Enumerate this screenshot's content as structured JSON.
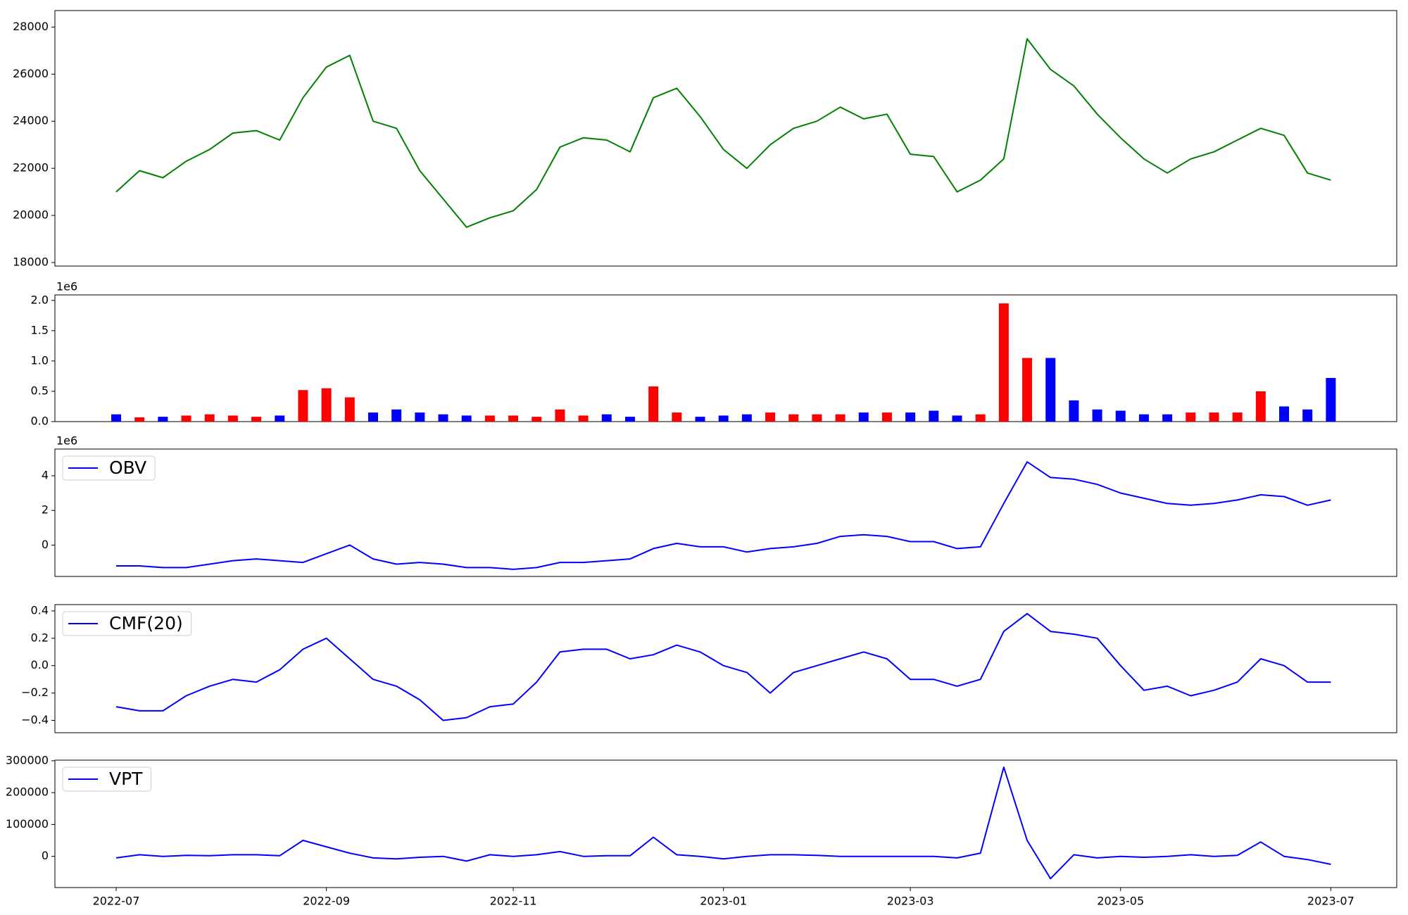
{
  "chart_data": [
    {
      "type": "line",
      "color": "#008000",
      "values": [
        21000,
        21900,
        21600,
        22300,
        22800,
        23500,
        23600,
        23200,
        25000,
        26300,
        26800,
        24000,
        23700,
        21900,
        20700,
        19500,
        19900,
        20200,
        21100,
        22900,
        23300,
        23200,
        22700,
        25000,
        25400,
        24200,
        22800,
        22000,
        23000,
        23700,
        24000,
        24600,
        24100,
        24300,
        22600,
        22500,
        21000,
        21500,
        22400,
        27500,
        26200,
        25500,
        24300,
        23300,
        22400,
        21800,
        22400,
        22700,
        23200,
        23700,
        23400,
        21800,
        21500
      ],
      "ylim": [
        17850,
        28700
      ],
      "yticks": [
        18000,
        20000,
        22000,
        24000,
        26000,
        28000
      ]
    },
    {
      "type": "bar",
      "y_offset_label": "1e6",
      "values": [
        120000,
        70000,
        80000,
        100000,
        120000,
        100000,
        80000,
        100000,
        520000,
        550000,
        400000,
        150000,
        200000,
        150000,
        120000,
        100000,
        100000,
        100000,
        80000,
        200000,
        100000,
        120000,
        80000,
        580000,
        150000,
        80000,
        100000,
        120000,
        150000,
        120000,
        120000,
        120000,
        150000,
        150000,
        150000,
        180000,
        100000,
        120000,
        1950000,
        1050000,
        1050000,
        350000,
        200000,
        180000,
        120000,
        120000,
        150000,
        150000,
        150000,
        500000,
        250000,
        200000,
        720000
      ],
      "colors": [
        "#0000ff",
        "#ff0000",
        "#0000ff",
        "#ff0000",
        "#ff0000",
        "#ff0000",
        "#ff0000",
        "#0000ff",
        "#ff0000",
        "#ff0000",
        "#ff0000",
        "#0000ff",
        "#0000ff",
        "#0000ff",
        "#0000ff",
        "#0000ff",
        "#ff0000",
        "#ff0000",
        "#ff0000",
        "#ff0000",
        "#ff0000",
        "#0000ff",
        "#0000ff",
        "#ff0000",
        "#ff0000",
        "#0000ff",
        "#0000ff",
        "#0000ff",
        "#ff0000",
        "#ff0000",
        "#ff0000",
        "#ff0000",
        "#0000ff",
        "#ff0000",
        "#0000ff",
        "#0000ff",
        "#0000ff",
        "#ff0000",
        "#ff0000",
        "#ff0000",
        "#0000ff",
        "#0000ff",
        "#0000ff",
        "#0000ff",
        "#0000ff",
        "#0000ff",
        "#ff0000",
        "#ff0000",
        "#ff0000",
        "#ff0000",
        "#0000ff",
        "#0000ff",
        "#0000ff"
      ],
      "ylim": [
        0,
        2090000
      ],
      "yticks": [
        {
          "value": 0,
          "label": "0.0"
        },
        {
          "value": 500000,
          "label": "0.5"
        },
        {
          "value": 1000000,
          "label": "1.0"
        },
        {
          "value": 1500000,
          "label": "1.5"
        },
        {
          "value": 2000000,
          "label": "2.0"
        }
      ]
    },
    {
      "type": "line",
      "y_offset_label": "1e6",
      "legend": "upper left",
      "series": [
        {
          "name": "OBV",
          "color": "#0000ff",
          "values": [
            -1200000,
            -1200000,
            -1300000,
            -1300000,
            -1100000,
            -900000,
            -800000,
            -900000,
            -1000000,
            -500000,
            0,
            -800000,
            -1100000,
            -1000000,
            -1100000,
            -1300000,
            -1300000,
            -1400000,
            -1300000,
            -1000000,
            -1000000,
            -900000,
            -800000,
            -200000,
            100000,
            -100000,
            -100000,
            -400000,
            -200000,
            -100000,
            100000,
            500000,
            600000,
            500000,
            200000,
            200000,
            -200000,
            -100000,
            2400000,
            4800000,
            3900000,
            3800000,
            3500000,
            3000000,
            2700000,
            2400000,
            2300000,
            2400000,
            2600000,
            2900000,
            2800000,
            2300000,
            2600000
          ]
        }
      ],
      "ylim": [
        -1810000,
        5540000
      ],
      "yticks": [
        {
          "value": 0,
          "label": "0"
        },
        {
          "value": 2000000,
          "label": "2"
        },
        {
          "value": 4000000,
          "label": "4"
        }
      ]
    },
    {
      "type": "line",
      "legend": "upper left",
      "series": [
        {
          "name": "CMF(20)",
          "color": "#0000ff",
          "values": [
            -0.3,
            -0.33,
            -0.33,
            -0.22,
            -0.15,
            -0.1,
            -0.12,
            -0.03,
            0.12,
            0.2,
            0.05,
            -0.1,
            -0.15,
            -0.25,
            -0.4,
            -0.38,
            -0.3,
            -0.28,
            -0.12,
            0.1,
            0.12,
            0.12,
            0.05,
            0.08,
            0.15,
            0.1,
            0.0,
            -0.05,
            -0.2,
            -0.05,
            0.0,
            0.05,
            0.1,
            0.05,
            -0.1,
            -0.1,
            -0.15,
            -0.1,
            0.25,
            0.38,
            0.25,
            0.23,
            0.2,
            0.0,
            -0.18,
            -0.15,
            -0.22,
            -0.18,
            -0.12,
            0.05,
            0.0,
            -0.12,
            -0.12
          ]
        }
      ],
      "ylim": [
        -0.49,
        0.446
      ],
      "yticks": [
        {
          "value": -0.4,
          "label": "−0.4"
        },
        {
          "value": -0.2,
          "label": "−0.2"
        },
        {
          "value": 0,
          "label": "0.0"
        },
        0.2,
        0.4
      ]
    },
    {
      "type": "line",
      "legend": "upper left",
      "categories": [
        "2022-07",
        null,
        null,
        null,
        null,
        null,
        null,
        null,
        null,
        "2022-09",
        null,
        null,
        null,
        null,
        null,
        null,
        null,
        "2022-11",
        null,
        null,
        null,
        null,
        null,
        null,
        null,
        null,
        "2023-01",
        null,
        null,
        null,
        null,
        null,
        null,
        null,
        "2023-03",
        null,
        null,
        null,
        null,
        null,
        null,
        null,
        null,
        "2023-05",
        null,
        null,
        null,
        null,
        null,
        null,
        null,
        null,
        "2023-07"
      ],
      "series": [
        {
          "name": "VPT",
          "color": "#0000ff",
          "values": [
            -5000,
            5000,
            0,
            3000,
            2000,
            5000,
            5000,
            2000,
            50000,
            30000,
            10000,
            -5000,
            -8000,
            -3000,
            0,
            -15000,
            5000,
            0,
            5000,
            15000,
            0,
            2000,
            2000,
            60000,
            5000,
            0,
            -8000,
            0,
            5000,
            5000,
            3000,
            0,
            0,
            0,
            0,
            0,
            -5000,
            10000,
            280000,
            50000,
            -70000,
            5000,
            -5000,
            0,
            -3000,
            0,
            5000,
            0,
            3000,
            45000,
            0,
            -10000,
            -25000
          ]
        }
      ],
      "ylim": [
        -98000,
        302000
      ],
      "yticks": [
        0,
        100000,
        200000,
        300000
      ]
    }
  ]
}
